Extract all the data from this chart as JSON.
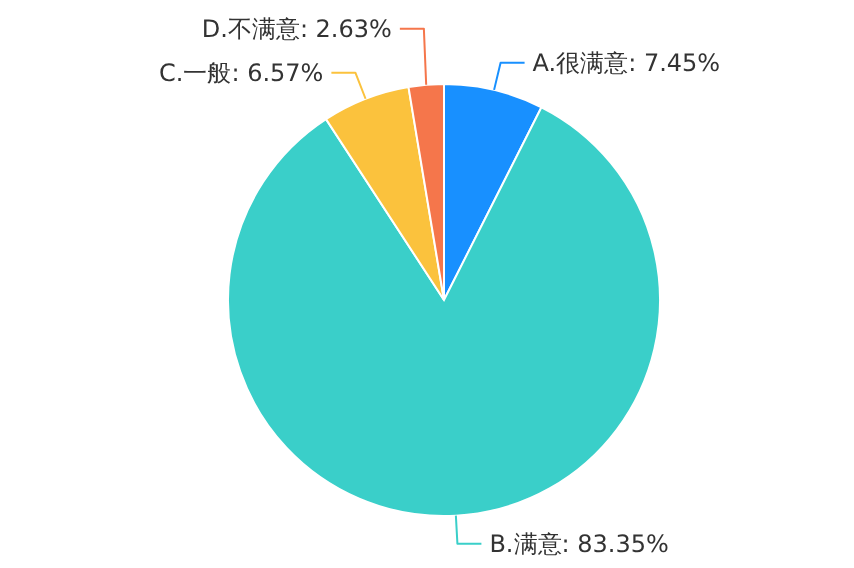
{
  "chart_data": {
    "type": "pie",
    "categories": [
      "A.很满意",
      "B.满意",
      "C.一般",
      "D.不满意"
    ],
    "values": [
      7.45,
      83.35,
      6.57,
      2.63
    ],
    "colors": [
      "#1890ff",
      "#3acfc9",
      "#fbc23d",
      "#f5764b"
    ],
    "value_labels": [
      "7.45%",
      "83.35%",
      "6.57%",
      "2.63%"
    ]
  }
}
